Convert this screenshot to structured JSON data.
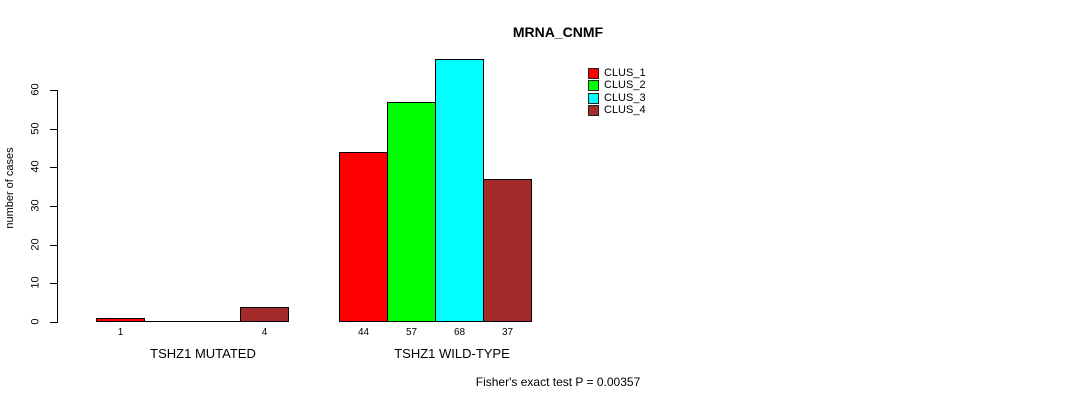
{
  "chart_data": {
    "type": "bar",
    "title": "MRNA_CNMF",
    "ylabel": "number of cases",
    "xlabel": "",
    "yticks": [
      0,
      10,
      20,
      30,
      40,
      50,
      60
    ],
    "ylim": [
      0,
      68
    ],
    "grid": false,
    "legend_position": "top-right",
    "categories": [
      "TSHZ1 MUTATED",
      "TSHZ1 WILD-TYPE"
    ],
    "series": [
      {
        "name": "CLUS_1",
        "color": "#ff0000",
        "values": [
          1,
          44
        ]
      },
      {
        "name": "CLUS_2",
        "color": "#00ff00",
        "values": [
          0,
          57
        ]
      },
      {
        "name": "CLUS_3",
        "color": "#00ffff",
        "values": [
          0,
          68
        ]
      },
      {
        "name": "CLUS_4",
        "color": "#a52a2a",
        "values": [
          4,
          37
        ]
      }
    ],
    "visible_value_labels": [
      "1",
      "4",
      "44",
      "57",
      "68",
      "37"
    ],
    "annotation": "Fisher's exact test P = 0.00357"
  },
  "colors": {
    "axis": "#000000",
    "background": "#ffffff"
  }
}
